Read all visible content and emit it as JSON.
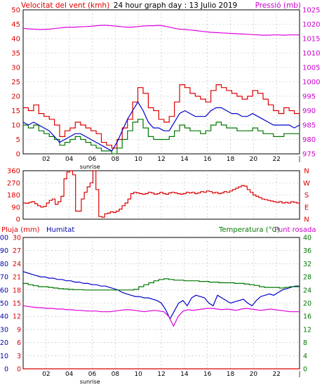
{
  "title": "24 hour graph day : 13 Julio 2019",
  "colors": {
    "gust": "#dd0000",
    "wind": "#007700",
    "pressure": "#dd00dd",
    "avg": "#0000cc",
    "direction": "#dd0000",
    "humidity": "#0000cc",
    "temperature": "#007700",
    "dewpoint": "#dd00dd",
    "rain": "#dd0000",
    "label_red": "#dd0000",
    "label_blue": "#0000aa",
    "label_green": "#007700",
    "label_magenta": "#cc00cc",
    "axis": "#000000",
    "grid": "#bbbbbb"
  },
  "chart_data": [
    {
      "type": "line",
      "left_label": "Velocitat del vent (kmh)",
      "right_label": "Pressió (mb)",
      "x_ticks": [
        "02",
        "04",
        "06",
        "08",
        "10",
        "12",
        "14",
        "16",
        "18",
        "20",
        "22"
      ],
      "x_ticks_end": "|",
      "x_annotation": "sunrise",
      "left_ticks": [
        "0",
        "5",
        "10",
        "15",
        "20",
        "25",
        "30",
        "35",
        "40",
        "45",
        "50"
      ],
      "right_ticks": [
        "975",
        "980",
        "985",
        "990",
        "995",
        "1000",
        "1005",
        "1010",
        "1015",
        "1020",
        "1025"
      ],
      "ylim_left": [
        0,
        50
      ],
      "ylim_right": [
        975,
        1025
      ],
      "x_range_hours": [
        0,
        24
      ],
      "series": [
        {
          "name": "gust",
          "values": [
            16,
            15,
            17,
            14,
            13,
            12,
            10,
            6,
            8,
            9,
            11,
            10,
            9,
            8,
            7,
            4,
            3,
            2,
            5,
            9,
            12,
            18,
            23,
            21,
            16,
            15,
            12,
            11,
            13,
            18,
            24,
            23,
            21,
            20,
            19,
            18,
            22,
            24,
            23,
            22,
            21,
            20,
            19,
            20,
            22,
            21,
            19,
            17,
            15,
            14,
            16,
            15,
            14,
            15
          ]
        },
        {
          "name": "wind",
          "values": [
            10,
            9,
            10,
            8,
            7,
            6,
            5,
            3,
            4,
            5,
            6,
            5,
            4,
            3,
            2,
            1,
            1,
            0,
            2,
            5,
            8,
            11,
            12,
            9,
            6,
            5,
            5,
            5,
            6,
            8,
            10,
            9,
            8,
            8,
            7,
            8,
            10,
            11,
            10,
            9,
            9,
            8,
            8,
            8,
            9,
            8,
            7,
            7,
            6,
            6,
            7,
            7,
            7,
            8
          ]
        },
        {
          "name": "avg",
          "values": [
            11,
            10,
            11,
            10,
            9,
            8,
            6,
            4,
            5,
            6,
            7,
            7,
            6,
            5,
            4,
            3,
            2,
            1,
            4,
            8,
            12,
            15,
            18,
            15,
            11,
            9,
            9,
            8,
            8,
            11,
            14,
            15,
            14,
            13,
            13,
            13,
            15,
            16,
            16,
            15,
            14,
            14,
            13,
            13,
            14,
            13,
            12,
            11,
            10,
            10,
            10,
            10,
            9,
            10
          ]
        },
        {
          "name": "pressure",
          "values": [
            1018.6,
            1018.4,
            1018.3,
            1018.2,
            1018.2,
            1018.3,
            1018.5,
            1018.7,
            1018.9,
            1019.0,
            1019.0,
            1019.1,
            1019.2,
            1019.3,
            1019.5,
            1019.6,
            1019.6,
            1019.5,
            1019.3,
            1019.1,
            1019.0,
            1019.0,
            1019.2,
            1019.4,
            1019.5,
            1019.5,
            1019.6,
            1019.4,
            1019.0,
            1018.6,
            1018.3,
            1018.2,
            1018.0,
            1017.8,
            1017.6,
            1017.4,
            1017.2,
            1017.1,
            1017.0,
            1016.9,
            1016.8,
            1016.7,
            1016.6,
            1016.5,
            1016.4,
            1016.3,
            1016.2,
            1016.2,
            1016.3,
            1016.3,
            1016.2,
            1016.3,
            1016.3,
            1016.3
          ]
        }
      ]
    },
    {
      "type": "line",
      "left_ticks": [
        "0",
        "90",
        "180",
        "270",
        "360"
      ],
      "right_ticks": [
        "N",
        "E",
        "S",
        "W",
        "N"
      ],
      "ylim": [
        0,
        360
      ],
      "x_range_hours": [
        0,
        24
      ],
      "series": [
        {
          "name": "direction",
          "values": [
            120,
            118,
            125,
            130,
            115,
            100,
            90,
            95,
            120,
            140,
            150,
            110,
            130,
            170,
            300,
            350,
            360,
            330,
            60,
            60,
            150,
            200,
            240,
            270,
            360,
            220,
            20,
            15,
            40,
            45,
            55,
            50,
            60,
            75,
            100,
            120,
            150,
            190,
            200,
            195,
            190,
            185,
            190,
            200,
            195,
            185,
            190,
            200,
            190,
            185,
            195,
            200,
            195,
            190,
            185,
            190,
            200,
            195,
            200,
            190,
            195,
            205,
            200,
            210,
            205,
            195,
            200,
            190,
            195,
            205,
            200,
            210,
            220,
            230,
            240,
            250,
            245,
            220,
            200,
            180,
            170,
            160,
            150,
            145,
            140,
            135,
            130,
            125,
            130,
            120,
            125,
            120,
            130,
            125,
            120,
            125
          ]
        }
      ]
    },
    {
      "type": "line",
      "left_label_1": "Pluja (mm)",
      "left_label_2": "Humitat",
      "right_label_1": "Temperatura (°C)",
      "right_label_2": "Punt rosada",
      "rain_ticks": [
        "0",
        "3",
        "6",
        "9",
        "12",
        "15",
        "18",
        "21",
        "24",
        "27",
        "30"
      ],
      "hum_ticks": [
        "0",
        "10",
        "20",
        "30",
        "40",
        "50",
        "60",
        "70",
        "80",
        "90",
        "100"
      ],
      "temp_ticks": [
        "0",
        "4",
        "8",
        "12",
        "16",
        "20",
        "24",
        "28",
        "32",
        "36",
        "40"
      ],
      "x_ticks": [
        "02",
        "04",
        "06",
        "08",
        "10",
        "12",
        "14",
        "16",
        "18",
        "20",
        "22"
      ],
      "x_ticks_end": "|",
      "x_annotation": "sunrise",
      "ylim_rain": [
        0,
        30
      ],
      "ylim_hum": [
        0,
        100
      ],
      "ylim_temp": [
        0,
        40
      ],
      "x_range_hours": [
        0,
        24
      ],
      "series": [
        {
          "name": "humidity",
          "values": [
            74,
            73,
            72,
            71,
            70,
            70,
            69,
            69,
            68,
            68,
            67,
            67,
            66,
            66,
            65,
            65,
            64,
            64,
            63,
            63,
            62,
            61,
            60,
            58,
            57,
            56,
            55,
            55,
            54,
            54,
            53,
            52,
            50,
            45,
            38,
            44,
            50,
            52,
            48,
            54,
            56,
            55,
            54,
            50,
            48,
            56,
            54,
            52,
            50,
            51,
            52,
            53,
            50,
            48,
            52,
            55,
            56,
            57,
            56,
            58,
            60,
            61,
            62,
            63,
            63
          ]
        },
        {
          "name": "temperature",
          "values": [
            26,
            25.6,
            25.3,
            25,
            25,
            24.8,
            24.6,
            24.4,
            24.3,
            24.2,
            24.1,
            24.1,
            24,
            24,
            24,
            24,
            24,
            24,
            24,
            24,
            24,
            24,
            24.2,
            25,
            25.6,
            26.2,
            26.8,
            27.2,
            27.4,
            27.2,
            27,
            27,
            26.8,
            26.8,
            26.8,
            26.6,
            26.6,
            26.4,
            26.4,
            26.2,
            26.2,
            26.2,
            26,
            26,
            25.8,
            25.6,
            25.4,
            25,
            24.8,
            24.8,
            24.8,
            24.6,
            24.8,
            25,
            25,
            25
          ]
        },
        {
          "name": "dewpoint",
          "values": [
            19.2,
            19,
            18.8,
            18.6,
            18.6,
            18.4,
            18.4,
            18.2,
            18.2,
            18,
            18,
            17.8,
            17.8,
            17.6,
            17.6,
            17.6,
            17.4,
            17.4,
            17.4,
            17.6,
            17.8,
            18,
            18,
            17.8,
            17.6,
            17.4,
            17.6,
            17.8,
            17.6,
            17.4,
            16,
            13,
            16,
            17.6,
            18,
            17.8,
            18,
            18.2,
            18.4,
            18.4,
            18.2,
            18,
            18.2,
            18,
            17.8,
            18.2,
            18.4,
            18.2,
            18,
            17.8,
            18,
            18.2,
            18,
            17.8,
            17.6,
            17.4,
            17.4,
            17.4
          ]
        },
        {
          "name": "rain",
          "values": [
            0,
            0
          ]
        }
      ]
    }
  ]
}
